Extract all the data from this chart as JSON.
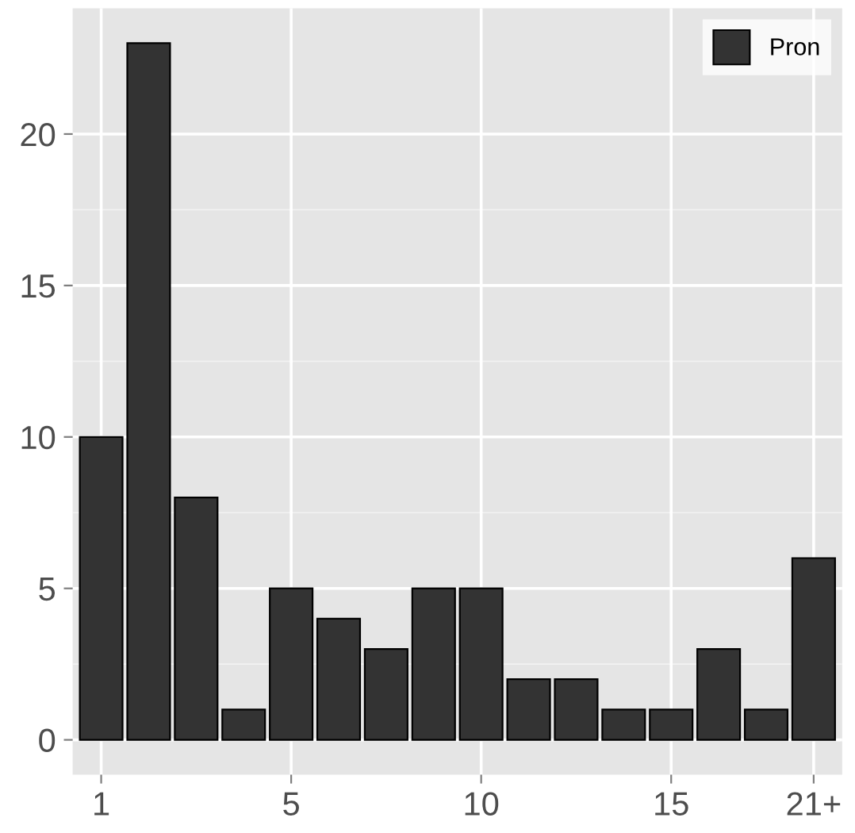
{
  "chart_data": {
    "type": "bar",
    "categories": [
      "1",
      null,
      null,
      null,
      "5",
      null,
      null,
      null,
      "10",
      null,
      null,
      null,
      "15",
      null,
      null,
      "21+"
    ],
    "series": [
      {
        "name": "Pron",
        "color": "#333333",
        "values": [
          10,
          23,
          8,
          1,
          5,
          4,
          3,
          5,
          5,
          2,
          2,
          1,
          1,
          3,
          1,
          6
        ]
      }
    ],
    "ylim": [
      -1.15,
      24.15
    ],
    "yticks": [
      0,
      5,
      10,
      15,
      20
    ],
    "grid": true,
    "legend": "top right"
  }
}
